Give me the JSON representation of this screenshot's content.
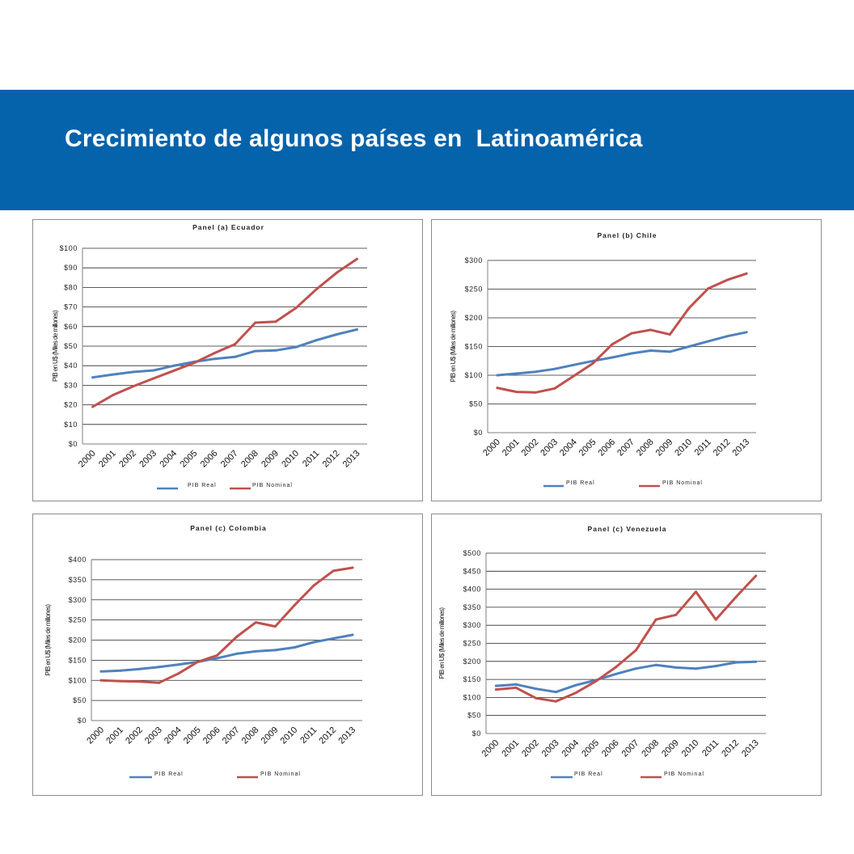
{
  "slide_title": "Crecimiento de algunos países en  Latinoamérica",
  "colors": {
    "banner": "#0563ab",
    "real": "#4f81bd",
    "nominal": "#c0504d"
  },
  "chart_data": [
    {
      "type": "line",
      "title": "Panel (a) Ecuador",
      "ylabel": "PIB en U$ (Miles de millones)",
      "categories": [
        "2000",
        "2001",
        "2002",
        "2003",
        "2004",
        "2005",
        "2006",
        "2007",
        "2008",
        "2009",
        "2010",
        "2011",
        "2012",
        "2013"
      ],
      "yticks": [
        "$0",
        "$10",
        "$20",
        "$30",
        "$40",
        "$50",
        "$60",
        "$70",
        "$80",
        "$90",
        "$100"
      ],
      "ylim": [
        0,
        100
      ],
      "series": [
        {
          "name": "PIB Real",
          "values": [
            34,
            35.5,
            36.8,
            37.6,
            40,
            42,
            43.5,
            44.5,
            47.5,
            47.8,
            49.5,
            53,
            56,
            58.5
          ]
        },
        {
          "name": "PIB Nominal",
          "values": [
            19,
            25,
            29.5,
            33.5,
            37.5,
            41.5,
            46.5,
            51,
            62,
            62.5,
            69.5,
            79,
            87.5,
            94.5
          ]
        }
      ],
      "legend": "bottom"
    },
    {
      "type": "line",
      "title": "Panel (b) Chile",
      "ylabel": "PIB en U$ (Miles de millones)",
      "categories": [
        "2000",
        "2001",
        "2002",
        "2003",
        "2004",
        "2005",
        "2006",
        "2007",
        "2008",
        "2009",
        "2010",
        "2011",
        "2012",
        "2013"
      ],
      "yticks": [
        "$0",
        "$50",
        "$100",
        "$150",
        "$200",
        "$250",
        "$300"
      ],
      "ylim": [
        0,
        300
      ],
      "series": [
        {
          "name": "PIB Real",
          "values": [
            100,
            103,
            106,
            111,
            118,
            125,
            131,
            138,
            143,
            141,
            150,
            159,
            168,
            175
          ]
        },
        {
          "name": "PIB Nominal",
          "values": [
            78,
            71,
            70,
            77,
            99,
            121,
            154,
            173,
            179,
            171,
            217,
            251,
            266,
            277
          ]
        }
      ],
      "legend": "bottom"
    },
    {
      "type": "line",
      "title": "Panel (c) Colombia",
      "ylabel": "PIB en U$ (Miles de millones)",
      "categories": [
        "2000",
        "2001",
        "2002",
        "2003",
        "2004",
        "2005",
        "2006",
        "2007",
        "2008",
        "2009",
        "2010",
        "2011",
        "2012",
        "2013"
      ],
      "yticks": [
        "$0",
        "$50",
        "$100",
        "$150",
        "$200",
        "$250",
        "$300",
        "$350",
        "$400"
      ],
      "ylim": [
        0,
        400
      ],
      "series": [
        {
          "name": "PIB Real",
          "values": [
            122,
            124,
            128,
            133,
            139,
            146,
            155,
            166,
            172,
            175,
            182,
            195,
            204,
            213
          ]
        },
        {
          "name": "PIB Nominal",
          "values": [
            100,
            98,
            97,
            94,
            117,
            146,
            162,
            208,
            244,
            234,
            287,
            336,
            372,
            380
          ]
        }
      ],
      "legend": "bottom"
    },
    {
      "type": "line",
      "title": "Panel (c) Venezuela",
      "ylabel": "PIB en U$ (Miles de millones)",
      "categories": [
        "2000",
        "2001",
        "2002",
        "2003",
        "2004",
        "2005",
        "2006",
        "2007",
        "2008",
        "2009",
        "2010",
        "2011",
        "2012",
        "2013"
      ],
      "yticks": [
        "$0",
        "$50",
        "$100",
        "$150",
        "$200",
        "$250",
        "$300",
        "$350",
        "$400",
        "$450",
        "$500"
      ],
      "ylim": [
        0,
        500
      ],
      "series": [
        {
          "name": "PIB Real",
          "values": [
            132,
            136,
            124,
            115,
            134,
            148,
            165,
            180,
            190,
            183,
            180,
            187,
            197,
            199
          ]
        },
        {
          "name": "PIB Nominal",
          "values": [
            122,
            127,
            98,
            89,
            113,
            145,
            184,
            231,
            316,
            329,
            393,
            316,
            378,
            437
          ]
        }
      ],
      "legend": "bottom"
    }
  ]
}
